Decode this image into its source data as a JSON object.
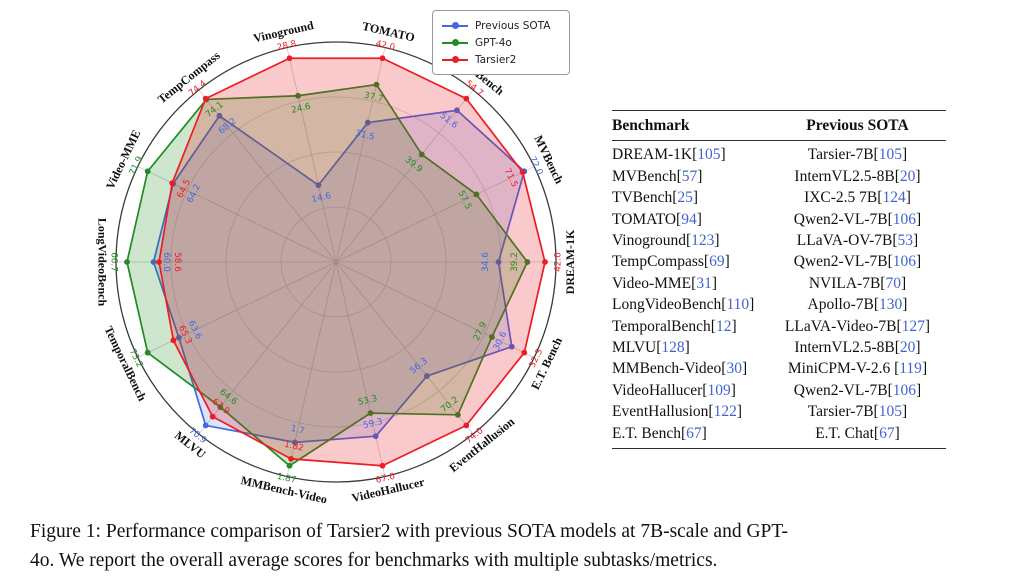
{
  "legend": {
    "items": [
      {
        "label": "Previous SOTA",
        "color": "#4169E1"
      },
      {
        "label": "GPT-4o",
        "color": "#228B22"
      },
      {
        "label": "Tarsier2",
        "color": "#EC1C24"
      }
    ]
  },
  "chart_data": {
    "type": "radar",
    "title": "",
    "axes": [
      "TOMATO",
      "TVBench",
      "MVBench",
      "DREAM-1K",
      "E.T. Bench",
      "EventHallusion",
      "VideoHallucer",
      "MMBench-Video",
      "MLVU",
      "TemporalBench",
      "LongVideoBench",
      "Video-MME",
      "TempCompass",
      "Vinoground"
    ],
    "series": [
      {
        "name": "Previous SOTA",
        "color": "#4169E1",
        "values": [
          "31.5",
          "51.6",
          "72.0",
          "34.6",
          "30.6",
          "56.3",
          "59.3",
          "1.7",
          "70.9",
          "63.6",
          "60.0",
          "64.2",
          "68.2",
          "14.6"
        ]
      },
      {
        "name": "GPT-4o",
        "color": "#228B22",
        "values": [
          "37.7",
          "39.9",
          "57.5",
          "39.2",
          "27.9",
          "70.2",
          "53.3",
          "1.87",
          "64.6",
          "73.2",
          "66.7",
          "71.9",
          "74.1",
          "24.6"
        ]
      },
      {
        "name": "Tarsier2",
        "color": "#EC1C24",
        "values": [
          "42.0",
          "54.7",
          "71.5",
          "42.0",
          "32.3",
          "74.0",
          "67.0",
          "1.82",
          "67.9",
          "65.3",
          "58.6",
          "64.5",
          "74.4",
          "28.8"
        ]
      }
    ],
    "start_angle_deg": 77.14,
    "step_deg": -25.714,
    "grid": {
      "rings": [
        0.25,
        0.5,
        0.75
      ],
      "outer_circle": true
    },
    "normalization": "per-axis, max value near outer rim",
    "legend_position": "upper right"
  },
  "table": {
    "headers": [
      "Benchmark",
      "Previous SOTA"
    ],
    "rows": [
      {
        "benchmark": "DREAM-1K",
        "benchmark_ref": "105",
        "sota": "Tarsier-7B",
        "sota_ref": "105"
      },
      {
        "benchmark": "MVBench",
        "benchmark_ref": "57",
        "sota": "InternVL2.5-8B",
        "sota_ref": "20"
      },
      {
        "benchmark": "TVBench",
        "benchmark_ref": "25",
        "sota": "IXC-2.5 7B",
        "sota_ref": "124"
      },
      {
        "benchmark": "TOMATO",
        "benchmark_ref": "94",
        "sota": "Qwen2-VL-7B",
        "sota_ref": "106"
      },
      {
        "benchmark": "Vinoground",
        "benchmark_ref": "123",
        "sota": "LLaVA-OV-7B",
        "sota_ref": "53"
      },
      {
        "benchmark": "TempCompass",
        "benchmark_ref": "69",
        "sota": "Qwen2-VL-7B",
        "sota_ref": "106"
      },
      {
        "benchmark": "Video-MME",
        "benchmark_ref": "31",
        "sota": "NVILA-7B",
        "sota_ref": "70"
      },
      {
        "benchmark": "LongVideoBench",
        "benchmark_ref": "110",
        "sota": "Apollo-7B",
        "sota_ref": "130"
      },
      {
        "benchmark": "TemporalBench",
        "benchmark_ref": "12",
        "sota": "LLaVA-Video-7B",
        "sota_ref": "127"
      },
      {
        "benchmark": "MLVU",
        "benchmark_ref": "128",
        "sota": "InternVL2.5-8B",
        "sota_ref": "20"
      },
      {
        "benchmark": "MMBench-Video",
        "benchmark_ref": "30",
        "sota": "MiniCPM-V-2.6 ",
        "sota_ref": "119"
      },
      {
        "benchmark": "VideoHallucer",
        "benchmark_ref": "109",
        "sota": "Qwen2-VL-7B",
        "sota_ref": "106"
      },
      {
        "benchmark": "EventHallusion",
        "benchmark_ref": "122",
        "sota": "Tarsier-7B",
        "sota_ref": "105"
      },
      {
        "benchmark": "E.T. Bench",
        "benchmark_ref": "67",
        "sota": "E.T. Chat",
        "sota_ref": "67"
      }
    ]
  },
  "caption": {
    "label": "Figure 1:",
    "line1": "Performance comparison of Tarsier2 with previous SOTA models at 7B-scale and GPT-",
    "line2": "4o. We report the overall average scores for benchmarks with multiple subtasks/metrics."
  }
}
